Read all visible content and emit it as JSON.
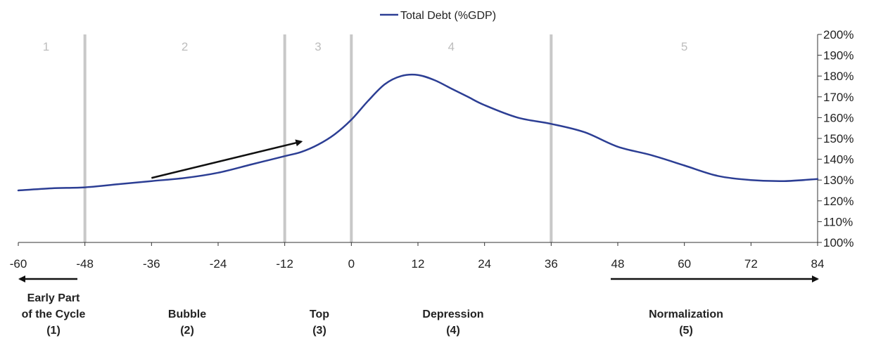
{
  "chart_data": {
    "type": "line",
    "title": "",
    "xlabel": "",
    "ylabel": "",
    "xlim": [
      -60,
      84
    ],
    "ylim": [
      100,
      200
    ],
    "x_ticks": [
      -60,
      -48,
      -36,
      -24,
      -12,
      0,
      12,
      24,
      36,
      48,
      60,
      72,
      84
    ],
    "y_ticks": [
      100,
      110,
      120,
      130,
      140,
      150,
      160,
      170,
      180,
      190,
      200
    ],
    "y_tick_suffix": "%",
    "y_axis_side": "right",
    "legend_position": "top-center",
    "series": [
      {
        "name": "Total Debt (%GDP)",
        "color": "#2c3e94",
        "x": [
          -60,
          -54,
          -48,
          -42,
          -36,
          -30,
          -24,
          -18,
          -12,
          -9,
          -6,
          -3,
          0,
          3,
          6,
          9,
          12,
          15,
          18,
          21,
          24,
          30,
          36,
          42,
          48,
          54,
          60,
          66,
          72,
          78,
          84
        ],
        "y": [
          125,
          126,
          126.5,
          128,
          129.5,
          131,
          133.5,
          137.5,
          141.5,
          143.5,
          147,
          152,
          159,
          168,
          176,
          180,
          180.5,
          178,
          174,
          170,
          166,
          160,
          157,
          153,
          146,
          142,
          137,
          132,
          130,
          129.5,
          130.5
        ]
      }
    ],
    "phase_boundaries": [
      -48,
      -12,
      0,
      36
    ],
    "phase_number_labels": [
      {
        "text": "1",
        "x": -55
      },
      {
        "text": "2",
        "x": -30
      },
      {
        "text": "3",
        "x": -6
      },
      {
        "text": "4",
        "x": 18
      },
      {
        "text": "5",
        "x": 60
      }
    ],
    "annotation_arrow": {
      "x1": -36,
      "y1": 131,
      "x2": -9,
      "y2": 148.5
    }
  },
  "phases": [
    {
      "line1": "Early Part",
      "line2": "of the Cycle",
      "line3": "(1)"
    },
    {
      "line1": "Bubble",
      "line2": "(2)"
    },
    {
      "line1": "Top",
      "line2": "(3)"
    },
    {
      "line1": "Depression",
      "line2": "(4)"
    },
    {
      "line1": "Normalization",
      "line2": "(5)"
    }
  ],
  "colors": {
    "line": "#2c3e94",
    "boundary": "#c8c8c8",
    "arrow": "#111111"
  }
}
